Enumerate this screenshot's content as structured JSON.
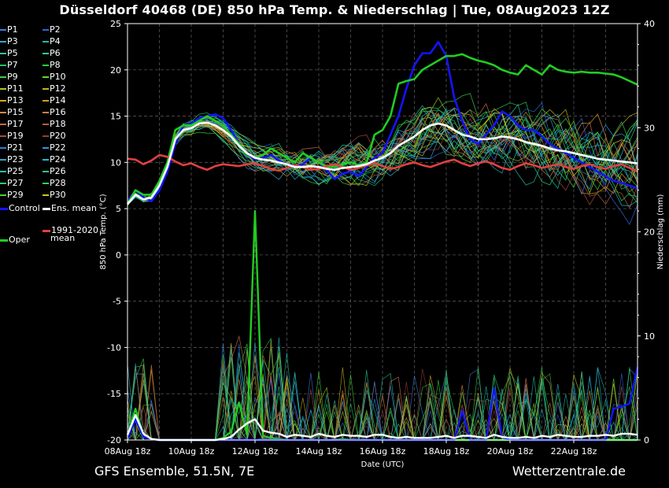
{
  "header": {
    "title": "Düsseldorf 40468 (DE)  850 hPa Temp. & Niederschlag | Tue, 08Aug2023 12Z"
  },
  "footer": {
    "left": "GFS Ensemble, 51.5N, 7E",
    "right": "Wetterzentrale.de"
  },
  "legend": {
    "members": [
      "P1",
      "P2",
      "P3",
      "P4",
      "P5",
      "P6",
      "P7",
      "P8",
      "P9",
      "P10",
      "P11",
      "P12",
      "P13",
      "P14",
      "P15",
      "P16",
      "P17",
      "P18",
      "P19",
      "P20",
      "P21",
      "P22",
      "P23",
      "P24",
      "P25",
      "P26",
      "P27",
      "P28",
      "P29",
      "P30"
    ],
    "member_colors": [
      "#3a7de0",
      "#2e63d8",
      "#2fa9cc",
      "#1eb7b0",
      "#27c4a8",
      "#2bcf8a",
      "#1ec46c",
      "#2ac850",
      "#36d040",
      "#5fd82c",
      "#a8c824",
      "#c8b01c",
      "#d8a81a",
      "#d89a28",
      "#d88a40",
      "#d47a4c",
      "#c86a4e",
      "#b85a48",
      "#a84a40",
      "#983a3a",
      "#2f78e0",
      "#2f94e8",
      "#2fa6c8",
      "#1fb8d0",
      "#20c0a8",
      "#22c890",
      "#2ecc6c",
      "#3ad050",
      "#40d438",
      "#c8c820"
    ],
    "control_label": "Control",
    "control_color": "#1414ff",
    "mean_label": "Ens. mean",
    "mean_color": "#ffffff",
    "climate_label_1": "1991-2020",
    "climate_label_2": "mean",
    "climate_color": "#e04040",
    "oper_label": "Oper",
    "oper_color": "#22cc22"
  },
  "chart_data": {
    "type": "line",
    "title": "Düsseldorf 40468 (DE)  850 hPa Temp. & Niederschlag | Tue, 08Aug2023 12Z",
    "xlabel": "Date (UTC)",
    "ylabel": "850 hPa Temp. (°C)",
    "y2label": "Niederschlag (mm)",
    "ylim": [
      -20,
      25
    ],
    "y2lim": [
      0,
      40
    ],
    "yticks": [
      25,
      20,
      15,
      10,
      5,
      0,
      -5,
      -10,
      -15,
      -20
    ],
    "y2ticks": [
      40,
      30,
      20,
      10,
      0
    ],
    "xrange_hours": [
      0,
      384
    ],
    "xticks": [
      {
        "hour": 0,
        "label": "08Aug 18z"
      },
      {
        "hour": 48,
        "label": "10Aug 18z"
      },
      {
        "hour": 96,
        "label": "12Aug 18z"
      },
      {
        "hour": 144,
        "label": "14Aug 18z"
      },
      {
        "hour": 192,
        "label": "16Aug 18z"
      },
      {
        "hour": 240,
        "label": "18Aug 18z"
      },
      {
        "hour": 288,
        "label": "20Aug 18z"
      },
      {
        "hour": 336,
        "label": "22Aug 18z"
      }
    ],
    "grid": true,
    "series": [
      {
        "name": "Oper",
        "axis": "temp",
        "x": [
          0,
          6,
          12,
          18,
          24,
          30,
          36,
          42,
          48,
          54,
          60,
          66,
          72,
          78,
          84,
          90,
          96,
          102,
          108,
          114,
          120,
          126,
          132,
          138,
          144,
          150,
          156,
          162,
          168,
          174,
          180,
          186,
          192,
          198,
          204,
          210,
          216,
          222,
          228,
          234,
          240,
          246,
          252,
          258,
          264,
          270,
          276,
          282,
          288,
          294,
          300,
          306,
          312,
          318,
          324,
          330,
          336,
          342,
          348,
          354,
          360,
          366,
          372,
          378,
          384
        ],
        "values": [
          5.5,
          7,
          6.5,
          6.5,
          8,
          10,
          13.5,
          14,
          14,
          14.5,
          15,
          14.5,
          14,
          13,
          12,
          11,
          10.5,
          10.8,
          11.5,
          11,
          10.5,
          10,
          11,
          10.5,
          10,
          9.5,
          9.5,
          9.8,
          10,
          9.7,
          10,
          13,
          13.5,
          15,
          18.5,
          18.8,
          19,
          20,
          20.5,
          21,
          21.5,
          21.5,
          21.7,
          21.3,
          21,
          20.8,
          20.5,
          20,
          19.7,
          19.5,
          20.5,
          20,
          19.5,
          20.5,
          20,
          19.8,
          19.7,
          19.8,
          19.7,
          19.7,
          19.6,
          19.5,
          19.2,
          18.8,
          18.4
        ]
      },
      {
        "name": "Control",
        "axis": "temp",
        "x": [
          0,
          6,
          12,
          18,
          24,
          30,
          36,
          42,
          48,
          54,
          60,
          66,
          72,
          78,
          84,
          90,
          96,
          102,
          108,
          114,
          120,
          126,
          132,
          138,
          144,
          150,
          156,
          162,
          168,
          174,
          180,
          186,
          192,
          198,
          204,
          210,
          216,
          222,
          228,
          234,
          240,
          246,
          252,
          258,
          264,
          270,
          276,
          282,
          288,
          294,
          300,
          306,
          312,
          318,
          324,
          330,
          336,
          342,
          348,
          354,
          360,
          366,
          372,
          378,
          384
        ],
        "values": [
          5.8,
          7,
          6.2,
          5.8,
          7,
          9,
          12,
          14,
          14.2,
          14.8,
          15,
          15.2,
          14.8,
          13.5,
          12,
          11,
          10.3,
          10.5,
          10.8,
          10.2,
          9.8,
          9.6,
          9.8,
          10.5,
          10,
          9.2,
          8.2,
          8.8,
          9,
          8.5,
          9.5,
          10.5,
          11,
          13,
          15,
          18,
          20.5,
          21.8,
          21.8,
          23,
          21.5,
          17,
          14.5,
          12.5,
          12,
          13,
          14,
          15.5,
          15,
          14,
          13.5,
          13.5,
          12.8,
          12,
          11.5,
          11,
          10.5,
          10,
          9.5,
          9,
          8.5,
          8,
          7.8,
          7.5,
          7.2
        ]
      },
      {
        "name": "Ens. mean",
        "axis": "temp",
        "x": [
          0,
          6,
          12,
          18,
          24,
          30,
          36,
          42,
          48,
          54,
          60,
          66,
          72,
          78,
          84,
          90,
          96,
          102,
          108,
          114,
          120,
          126,
          132,
          138,
          144,
          150,
          156,
          162,
          168,
          174,
          180,
          186,
          192,
          198,
          204,
          210,
          216,
          222,
          228,
          234,
          240,
          246,
          252,
          258,
          264,
          270,
          276,
          282,
          288,
          294,
          300,
          306,
          312,
          318,
          324,
          330,
          336,
          342,
          348,
          354,
          360,
          366,
          372,
          378,
          384
        ],
        "values": [
          5.5,
          6.5,
          6,
          6.2,
          7.5,
          9.5,
          12.5,
          13.5,
          13.7,
          14.2,
          14.3,
          14,
          13.5,
          12.8,
          11.8,
          11,
          10.5,
          10.3,
          10.2,
          10,
          9.8,
          9.5,
          9.5,
          9.6,
          9.5,
          9.3,
          9.2,
          9.4,
          9.5,
          9.6,
          9.8,
          10.2,
          10.5,
          11,
          11.8,
          12.3,
          12.8,
          13.5,
          14,
          14.2,
          14,
          13.5,
          13,
          12.8,
          12.5,
          12.5,
          12.6,
          12.8,
          12.7,
          12.5,
          12.2,
          12,
          11.8,
          11.5,
          11.3,
          11.2,
          11,
          10.8,
          10.6,
          10.4,
          10.3,
          10.2,
          10.1,
          10,
          9.9
        ]
      },
      {
        "name": "1991-2020 mean",
        "axis": "temp",
        "x": [
          0,
          6,
          12,
          18,
          24,
          30,
          36,
          42,
          48,
          54,
          60,
          66,
          72,
          78,
          84,
          90,
          96,
          102,
          108,
          114,
          120,
          126,
          132,
          138,
          144,
          150,
          156,
          162,
          168,
          174,
          180,
          186,
          192,
          198,
          204,
          210,
          216,
          222,
          228,
          234,
          240,
          246,
          252,
          258,
          264,
          270,
          276,
          282,
          288,
          294,
          300,
          306,
          312,
          318,
          324,
          330,
          336,
          342,
          348,
          354,
          360,
          366,
          372,
          378,
          384
        ],
        "values": [
          10.4,
          10.3,
          9.8,
          10.2,
          10.8,
          10.6,
          10.1,
          9.7,
          9.9,
          9.5,
          9.2,
          9.6,
          9.8,
          9.7,
          9.6,
          9.8,
          9.9,
          9.6,
          9.3,
          9.1,
          9.4,
          9.7,
          9.5,
          9.2,
          9.3,
          9.6,
          9.8,
          9.5,
          9.2,
          9.4,
          9.7,
          9.9,
          9.6,
          9.3,
          9.5,
          9.8,
          10.0,
          9.7,
          9.5,
          9.8,
          10.1,
          10.3,
          9.9,
          9.6,
          9.9,
          10.1,
          9.8,
          9.4,
          9.2,
          9.6,
          9.9,
          9.7,
          9.4,
          9.6,
          9.8,
          9.5,
          9.3,
          9.6,
          9.8,
          9.5,
          9.3,
          9.6,
          9.8,
          9.4,
          9.0
        ]
      },
      {
        "name": "Oper precipitation",
        "axis": "precip",
        "x": [
          0,
          6,
          12,
          18,
          24,
          30,
          36,
          42,
          48,
          54,
          60,
          66,
          72,
          78,
          84,
          90,
          96,
          102,
          108,
          114,
          120,
          126,
          132,
          138,
          144,
          150,
          156,
          162,
          168,
          174,
          180,
          186,
          192,
          198,
          204,
          210,
          216,
          222,
          228,
          234,
          240,
          246,
          252,
          258,
          264,
          270,
          276,
          282,
          288,
          294,
          300,
          306,
          312,
          318,
          324,
          330,
          336,
          342,
          348,
          354,
          360,
          366,
          372,
          378,
          384
        ],
        "values": [
          0.3,
          3,
          0.4,
          0.1,
          0,
          0,
          0,
          0,
          0,
          0,
          0,
          0,
          0.2,
          0.8,
          3.6,
          0.5,
          22,
          0.4,
          0.2,
          0.1,
          0,
          0,
          0,
          0,
          0,
          0,
          0,
          0.1,
          0,
          0,
          0,
          0,
          0,
          0,
          0,
          0,
          0,
          0,
          0,
          0,
          0,
          0,
          0,
          0,
          0,
          0,
          0,
          0,
          0,
          0,
          0,
          0,
          0,
          0,
          0,
          0,
          0,
          0,
          0,
          0,
          0,
          0,
          0,
          0,
          0
        ]
      },
      {
        "name": "Control precipitation",
        "axis": "precip",
        "x": [
          0,
          6,
          12,
          18,
          24,
          30,
          36,
          42,
          48,
          54,
          60,
          66,
          72,
          78,
          84,
          90,
          96,
          102,
          108,
          114,
          120,
          126,
          132,
          138,
          144,
          150,
          156,
          162,
          168,
          174,
          180,
          186,
          192,
          198,
          204,
          210,
          216,
          222,
          228,
          234,
          240,
          246,
          252,
          258,
          264,
          270,
          276,
          282,
          288,
          294,
          300,
          306,
          312,
          318,
          324,
          330,
          336,
          342,
          348,
          354,
          360,
          366,
          372,
          378,
          384
        ],
        "values": [
          0.2,
          2,
          0.3,
          0.1,
          0,
          0,
          0,
          0,
          0,
          0,
          0,
          0,
          0,
          0,
          0,
          0,
          0,
          0,
          0,
          0,
          0,
          0,
          0,
          0,
          0,
          0,
          0,
          0,
          0,
          0,
          0,
          0,
          0,
          0,
          0,
          0,
          0,
          0,
          0,
          0,
          0,
          0,
          2.8,
          0,
          0,
          0,
          5,
          0.3,
          0,
          0,
          0,
          0,
          0,
          0,
          0,
          0,
          0,
          0,
          0,
          0,
          0,
          3,
          3.2,
          3.5,
          7
        ]
      },
      {
        "name": "Ens. mean precipitation",
        "axis": "precip",
        "x": [
          0,
          6,
          12,
          18,
          24,
          30,
          36,
          42,
          48,
          54,
          60,
          66,
          72,
          78,
          84,
          90,
          96,
          102,
          108,
          114,
          120,
          126,
          132,
          138,
          144,
          150,
          156,
          162,
          168,
          174,
          180,
          186,
          192,
          198,
          204,
          210,
          216,
          222,
          228,
          234,
          240,
          246,
          252,
          258,
          264,
          270,
          276,
          282,
          288,
          294,
          300,
          306,
          312,
          318,
          324,
          330,
          336,
          342,
          348,
          354,
          360,
          366,
          372,
          378,
          384
        ],
        "values": [
          0.5,
          2.4,
          0.6,
          0.1,
          0,
          0,
          0,
          0,
          0,
          0,
          0,
          0,
          0.1,
          0.3,
          1,
          1.6,
          2,
          0.9,
          0.7,
          0.6,
          0.3,
          0.5,
          0.4,
          0.3,
          0.6,
          0.4,
          0.3,
          0.5,
          0.4,
          0.4,
          0.3,
          0.5,
          0.5,
          0.3,
          0.2,
          0.3,
          0.2,
          0.2,
          0.2,
          0.3,
          0.4,
          0.2,
          0.4,
          0.4,
          0.3,
          0.2,
          0.5,
          0.3,
          0.2,
          0.2,
          0.3,
          0.2,
          0.4,
          0.3,
          0.5,
          0.4,
          0.3,
          0.3,
          0.4,
          0.4,
          0.5,
          0.4,
          0.6,
          0.6,
          0.5
        ]
      }
    ]
  }
}
